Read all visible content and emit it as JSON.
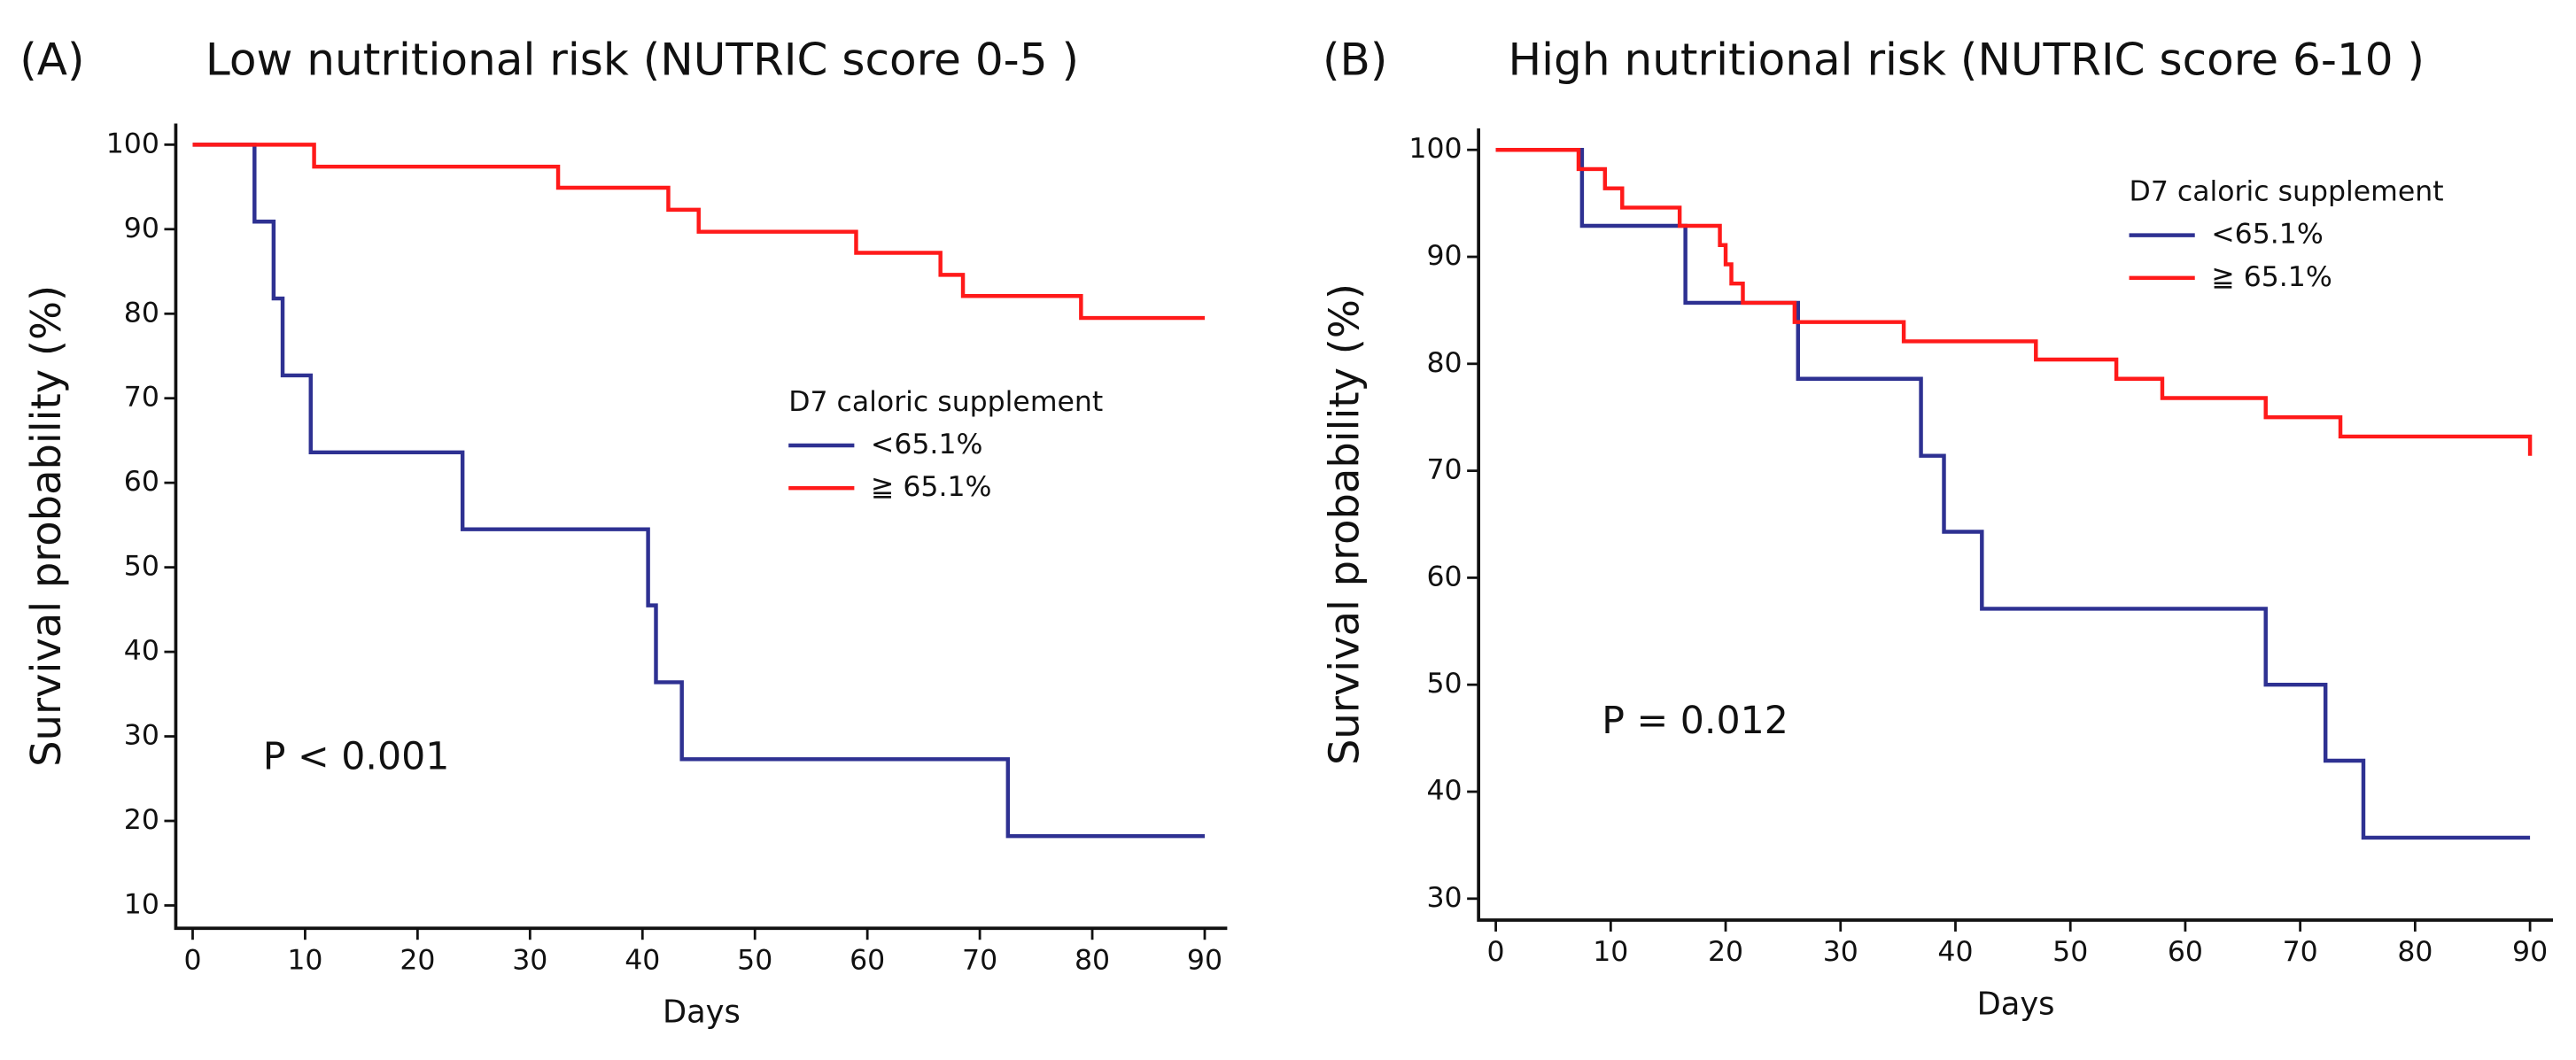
{
  "chart_data": [
    {
      "type": "step",
      "panel": "(A)",
      "title": "Low nutritional risk (NUTRIC score 0-5 )",
      "x_label": "Days",
      "y_label": "Survival probability (%)",
      "xlim": [
        -1.5,
        92
      ],
      "ylim": [
        7.3,
        102.5
      ],
      "xticks": [
        0,
        10,
        20,
        30,
        40,
        50,
        60,
        70,
        80,
        90
      ],
      "yticks": [
        10,
        20,
        30,
        40,
        50,
        60,
        70,
        80,
        90,
        100
      ],
      "legend_title": "D7 caloric supplement",
      "annotation": "P < 0.001",
      "series": [
        {
          "name": "<65.1%",
          "color": "#2e3192",
          "x": [
            0,
            5.5,
            7.2,
            8,
            10.5,
            24,
            40.5,
            41.2,
            43.5,
            72.5,
            90
          ],
          "values": [
            100,
            90.9,
            81.8,
            72.7,
            63.6,
            54.5,
            45.5,
            36.4,
            27.3,
            18.2,
            18.2
          ]
        },
        {
          "name": "≧ 65.1%",
          "color": "#ff1a1a",
          "x": [
            0,
            10.8,
            32.5,
            42.3,
            45,
            59,
            66.5,
            68.5,
            79,
            90
          ],
          "values": [
            100,
            97.4,
            94.9,
            92.3,
            89.7,
            87.2,
            84.6,
            82.1,
            79.5,
            79.5
          ]
        }
      ]
    },
    {
      "type": "step",
      "panel": "(B)",
      "title": "High nutritional risk (NUTRIC score 6-10 )",
      "x_label": "Days",
      "y_label": "Survival probability (%)",
      "xlim": [
        -1.5,
        92
      ],
      "ylim": [
        28,
        102
      ],
      "xticks": [
        0,
        10,
        20,
        30,
        40,
        50,
        60,
        70,
        80,
        90
      ],
      "yticks": [
        30,
        40,
        50,
        60,
        70,
        80,
        90,
        100
      ],
      "legend_title": "D7 caloric supplement",
      "annotation": "P = 0.012",
      "series": [
        {
          "name": "<65.1%",
          "color": "#2e3192",
          "x": [
            0,
            7.5,
            16.5,
            26.3,
            37,
            39,
            42.3,
            67,
            72.2,
            75.5,
            90
          ],
          "values": [
            100,
            92.9,
            85.7,
            78.6,
            71.4,
            64.3,
            57.1,
            50,
            42.9,
            35.7,
            35.7
          ]
        },
        {
          "name": "≧ 65.1%",
          "color": "#ff1a1a",
          "x": [
            0,
            7.2,
            9.5,
            11,
            16,
            19.5,
            20,
            20.5,
            21.5,
            26,
            35.5,
            47,
            54,
            58,
            67,
            73.5,
            90
          ],
          "values": [
            100,
            98.2,
            96.4,
            94.6,
            92.9,
            91.1,
            89.3,
            87.5,
            85.7,
            83.9,
            82.1,
            80.4,
            78.6,
            76.8,
            75,
            73.2,
            71.4
          ]
        }
      ]
    }
  ]
}
